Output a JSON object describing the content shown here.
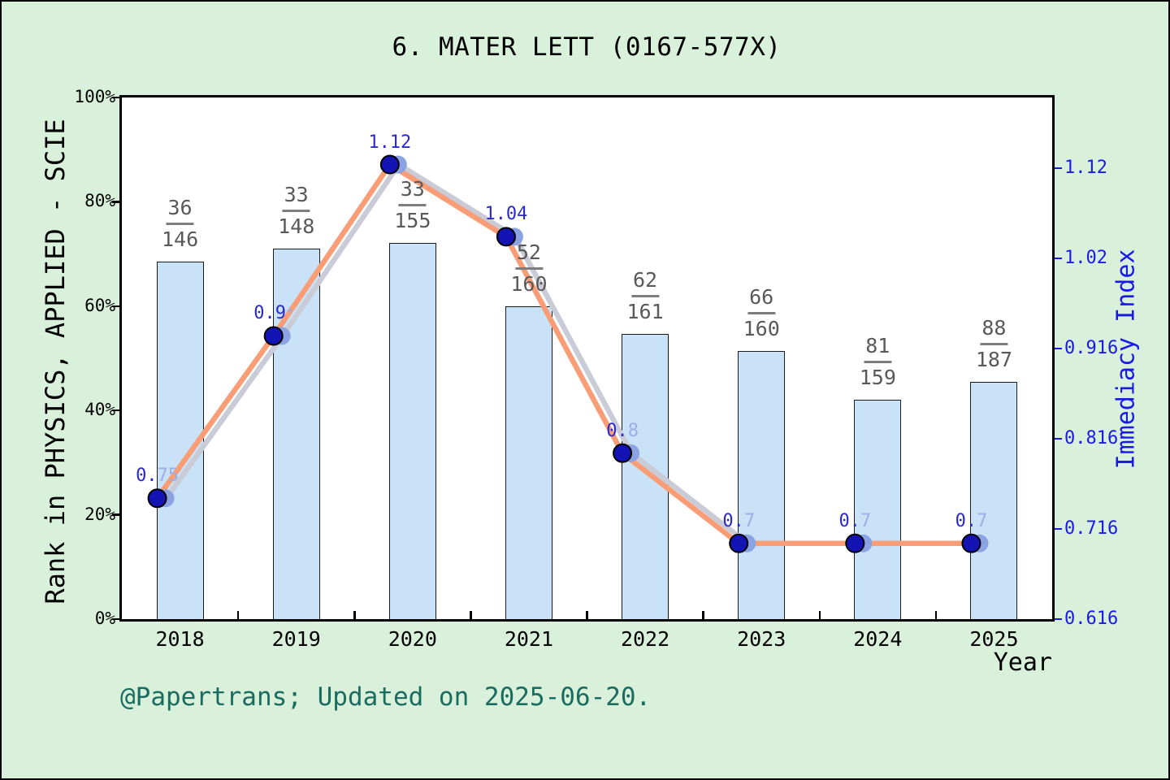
{
  "title": "6. MATER LETT (0167-577X)",
  "footer": "@Papertrans; Updated on 2025-06-20.",
  "axes": {
    "left": {
      "label": "Rank in PHYSICS, APPLIED - SCIE",
      "ticks": [
        "0%",
        "20%",
        "40%",
        "60%",
        "80%",
        "100%"
      ]
    },
    "right": {
      "label": "Immediacy Index",
      "ticks": [
        "0.616",
        "0.716",
        "0.816",
        "0.916",
        "1.02",
        "1.12"
      ]
    },
    "x": {
      "label": "Year"
    }
  },
  "chart_data": {
    "type": "bar+line",
    "categories": [
      "2018",
      "2019",
      "2020",
      "2021",
      "2022",
      "2023",
      "2024",
      "2025"
    ],
    "left_axis": {
      "title": "Rank in PHYSICS, APPLIED - SCIE",
      "range_percent": [
        0,
        100
      ],
      "tick_step_percent": 20
    },
    "right_axis": {
      "title": "Immediacy Index",
      "range": [
        0.616,
        1.116
      ],
      "tick_step": 0.1,
      "tick_labels": [
        "0.616",
        "0.716",
        "0.816",
        "0.916",
        "1.02",
        "1.12"
      ]
    },
    "grid": false,
    "series": [
      {
        "name": "rank-percentile-bars",
        "type": "bar",
        "unit": "percent-of-left-axis",
        "values": [
          68.6,
          71.0,
          72.1,
          60.0,
          54.6,
          51.4,
          42.1,
          45.5
        ],
        "rank_fractions": [
          {
            "numerator": "36",
            "denominator": "146"
          },
          {
            "numerator": "33",
            "denominator": "148"
          },
          {
            "numerator": "33",
            "denominator": "155"
          },
          {
            "numerator": "52",
            "denominator": "160"
          },
          {
            "numerator": "62",
            "denominator": "161"
          },
          {
            "numerator": "66",
            "denominator": "160"
          },
          {
            "numerator": "81",
            "denominator": "159"
          },
          {
            "numerator": "88",
            "denominator": "187"
          }
        ]
      },
      {
        "name": "immediacy-index-line",
        "type": "line",
        "values": [
          0.75,
          0.93,
          1.12,
          1.04,
          0.8,
          0.7,
          0.7,
          0.7
        ],
        "point_labels": [
          {
            "dark": "0.",
            "light": "75",
            "small_light": false
          },
          {
            "dark": "0.9",
            "light": "+",
            "small_light": true
          },
          {
            "dark": "1.12",
            "light": "",
            "small_light": false
          },
          {
            "dark": "1.04",
            "light": "",
            "small_light": false
          },
          {
            "dark": "0.",
            "light": "8",
            "small_light": false
          },
          {
            "dark": "0.",
            "light": "7",
            "small_light": false
          },
          {
            "dark": "0.",
            "light": "7",
            "small_light": false
          },
          {
            "dark": "0.",
            "light": "7",
            "small_light": false
          }
        ]
      }
    ]
  },
  "colors": {
    "background": "#d9f1da",
    "plot_background": "#ffffff",
    "bar_fill": "#c9e2f7",
    "bar_border": "#1a1a1a",
    "line": "#f99d76",
    "line_shadow": "#c9cbd6",
    "marker": "#1414b4",
    "marker_edge": "#000000",
    "marker_shadow": "#8ba2e3",
    "point_label_dark": "#2a2acc",
    "point_label_light": "#9aaee8",
    "fraction_text": "#595959",
    "right_axis_blue": "#1a1ae8",
    "footer_teal": "#1a6b60",
    "axis_black": "#000000"
  }
}
